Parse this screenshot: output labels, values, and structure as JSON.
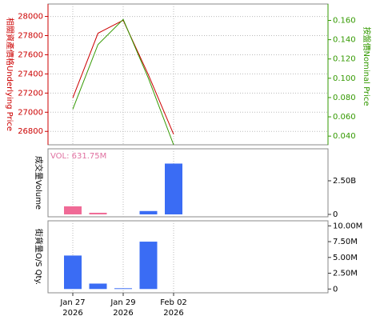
{
  "chart_data": [
    {
      "type": "line",
      "ylabel": "相關資產價格Underlying Price",
      "y2label": "按盤價Nominal Price",
      "ylim": [
        26660,
        28130
      ],
      "yticks": [
        26800,
        27000,
        27200,
        27400,
        27600,
        27800,
        28000
      ],
      "y2lim": [
        0.031,
        0.177
      ],
      "y2ticks": [
        {
          "value": 0.04,
          "label": "0.040"
        },
        {
          "value": 0.06,
          "label": "0.060"
        },
        {
          "value": 0.08,
          "label": "0.080"
        },
        {
          "value": 0.1,
          "label": "0.100"
        },
        {
          "value": 0.12,
          "label": "0.120"
        },
        {
          "value": 0.14,
          "label": "0.140"
        },
        {
          "value": 0.16,
          "label": "0.160"
        }
      ],
      "ylabel_color": "#cc0000",
      "y2label_color": "#339900",
      "grid": true,
      "series": [
        {
          "color": "#cc0000",
          "values": [
            27150,
            27825,
            27960,
            27390,
            26770
          ]
        },
        {
          "color": "#339900",
          "axis": "y2",
          "values": [
            0.068,
            0.135,
            0.161,
            0.1,
            0.031
          ]
        }
      ]
    },
    {
      "type": "bar",
      "ylabel": "成交量Volume",
      "annotation": "VOL: 631.75M",
      "annotation_color": "#e070a0",
      "ylim": [
        -180000000,
        4880000000
      ],
      "yticks": [
        {
          "value": 0,
          "label": "0"
        },
        {
          "value": 2500000000,
          "label": "2.50B"
        }
      ],
      "values": [
        600000000,
        120000000,
        0,
        250000000,
        3780000000
      ],
      "colors": [
        "#f06a96",
        "#f06a96",
        "#3a6cf4",
        "#3a6cf4",
        "#3a6cf4"
      ]
    },
    {
      "type": "bar",
      "ylabel": "街貨量O/S Qty.",
      "ylim": [
        -600000,
        10800000
      ],
      "yticks": [
        {
          "value": 0,
          "label": "0"
        },
        {
          "value": 2500000,
          "label": "2.50M"
        },
        {
          "value": 5000000,
          "label": "5.00M"
        },
        {
          "value": 7500000,
          "label": "7.50M"
        },
        {
          "value": 10000000,
          "label": "10.00M"
        }
      ],
      "values": [
        5300000,
        860000,
        120000,
        7500000,
        0
      ],
      "colors": [
        "#3a6cf4",
        "#3a6cf4",
        "#3a6cf4",
        "#3a6cf4",
        "#3a6cf4"
      ],
      "categories": [
        "Jan 27",
        null,
        "Jan 29",
        null,
        "Feb 02"
      ],
      "category_years": [
        "2026",
        null,
        "2026",
        null,
        "2026"
      ]
    }
  ]
}
